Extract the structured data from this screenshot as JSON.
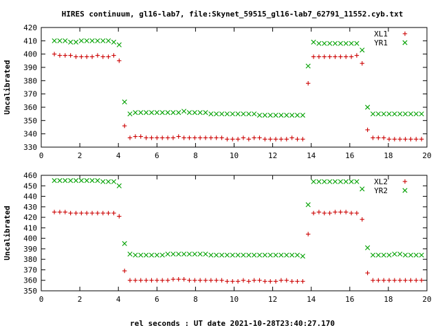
{
  "chart_data": [
    {
      "type": "scatter",
      "title": "HIRES continuum, gl16-lab7, file:Skynet_59515_gl16-lab7_62791_11552.cyb.txt",
      "ylabel": "Uncalibrated",
      "xlabel": "",
      "xlim": [
        0,
        20
      ],
      "ylim": [
        330,
        420
      ],
      "xticks": [
        0,
        2,
        4,
        6,
        8,
        10,
        12,
        14,
        16,
        18,
        20
      ],
      "yticks": [
        330,
        340,
        350,
        360,
        370,
        380,
        390,
        400,
        410,
        420
      ],
      "grid": false,
      "legend_position": "top-right",
      "series": [
        {
          "name": "XL1",
          "marker": "plus",
          "color": "#cc0000",
          "x": [
            0.68,
            0.96,
            1.24,
            1.52,
            1.8,
            2.08,
            2.36,
            2.64,
            2.92,
            3.2,
            3.48,
            3.76,
            4.04,
            4.32,
            4.6,
            4.88,
            5.16,
            5.44,
            5.72,
            6.0,
            6.28,
            6.56,
            6.84,
            7.12,
            7.4,
            7.68,
            7.96,
            8.24,
            8.52,
            8.8,
            9.08,
            9.36,
            9.64,
            9.92,
            10.2,
            10.48,
            10.76,
            11.04,
            11.32,
            11.6,
            11.88,
            12.16,
            12.44,
            12.72,
            13.0,
            13.28,
            13.56,
            13.84,
            14.12,
            14.4,
            14.68,
            14.96,
            15.24,
            15.52,
            15.8,
            16.08,
            16.36,
            16.64,
            16.92,
            17.2,
            17.48,
            17.76,
            18.04,
            18.32,
            18.6,
            18.88,
            19.16,
            19.44,
            19.72
          ],
          "y": [
            400,
            399,
            399,
            399,
            398,
            398,
            398,
            398,
            399,
            398,
            398,
            399,
            395,
            346,
            337,
            338,
            338,
            337,
            337,
            337,
            337,
            337,
            337,
            338,
            337,
            337,
            337,
            337,
            337,
            337,
            337,
            337,
            336,
            336,
            336,
            337,
            336,
            337,
            337,
            336,
            336,
            336,
            336,
            336,
            337,
            336,
            336,
            378,
            398,
            398,
            398,
            398,
            398,
            398,
            398,
            398,
            399,
            393,
            343,
            337,
            337,
            337,
            336,
            336,
            336,
            336,
            336,
            336,
            336
          ]
        },
        {
          "name": "YR1",
          "marker": "cross",
          "color": "#00a000",
          "x": [
            0.68,
            0.96,
            1.24,
            1.52,
            1.8,
            2.08,
            2.36,
            2.64,
            2.92,
            3.2,
            3.48,
            3.76,
            4.04,
            4.32,
            4.6,
            4.88,
            5.16,
            5.44,
            5.72,
            6.0,
            6.28,
            6.56,
            6.84,
            7.12,
            7.4,
            7.68,
            7.96,
            8.24,
            8.52,
            8.8,
            9.08,
            9.36,
            9.64,
            9.92,
            10.2,
            10.48,
            10.76,
            11.04,
            11.32,
            11.6,
            11.88,
            12.16,
            12.44,
            12.72,
            13.0,
            13.28,
            13.56,
            13.84,
            14.12,
            14.4,
            14.68,
            14.96,
            15.24,
            15.52,
            15.8,
            16.08,
            16.36,
            16.64,
            16.92,
            17.2,
            17.48,
            17.76,
            18.04,
            18.32,
            18.6,
            18.88,
            19.16,
            19.44,
            19.72
          ],
          "y": [
            410,
            410,
            410,
            409,
            409,
            410,
            410,
            410,
            410,
            410,
            410,
            409,
            407,
            364,
            355,
            356,
            356,
            356,
            356,
            356,
            356,
            356,
            356,
            356,
            357,
            356,
            356,
            356,
            356,
            355,
            355,
            355,
            355,
            355,
            355,
            355,
            355,
            355,
            354,
            354,
            354,
            354,
            354,
            354,
            354,
            354,
            354,
            391,
            409,
            408,
            408,
            408,
            408,
            408,
            408,
            408,
            408,
            403,
            360,
            355,
            355,
            355,
            355,
            355,
            355,
            355,
            355,
            355,
            355
          ]
        }
      ]
    },
    {
      "type": "scatter",
      "title": "",
      "ylabel": "Uncalibrated",
      "xlabel": "rel seconds : UT date 2021-10-28T23:40:27.170",
      "xlim": [
        0,
        20
      ],
      "ylim": [
        350,
        460
      ],
      "xticks": [
        0,
        2,
        4,
        6,
        8,
        10,
        12,
        14,
        16,
        18,
        20
      ],
      "yticks": [
        350,
        360,
        370,
        380,
        390,
        400,
        410,
        420,
        430,
        440,
        450,
        460
      ],
      "grid": false,
      "legend_position": "top-right",
      "series": [
        {
          "name": "XL2",
          "marker": "plus",
          "color": "#cc0000",
          "x": [
            0.68,
            0.96,
            1.24,
            1.52,
            1.8,
            2.08,
            2.36,
            2.64,
            2.92,
            3.2,
            3.48,
            3.76,
            4.04,
            4.32,
            4.6,
            4.88,
            5.16,
            5.44,
            5.72,
            6.0,
            6.28,
            6.56,
            6.84,
            7.12,
            7.4,
            7.68,
            7.96,
            8.24,
            8.52,
            8.8,
            9.08,
            9.36,
            9.64,
            9.92,
            10.2,
            10.48,
            10.76,
            11.04,
            11.32,
            11.6,
            11.88,
            12.16,
            12.44,
            12.72,
            13.0,
            13.28,
            13.56,
            13.84,
            14.12,
            14.4,
            14.68,
            14.96,
            15.24,
            15.52,
            15.8,
            16.08,
            16.36,
            16.64,
            16.92,
            17.2,
            17.48,
            17.76,
            18.04,
            18.32,
            18.6,
            18.88,
            19.16,
            19.44,
            19.72
          ],
          "y": [
            425,
            425,
            425,
            424,
            424,
            424,
            424,
            424,
            424,
            424,
            424,
            424,
            421,
            369,
            360,
            360,
            360,
            360,
            360,
            360,
            360,
            360,
            361,
            361,
            361,
            360,
            360,
            360,
            360,
            360,
            360,
            360,
            359,
            359,
            359,
            360,
            359,
            360,
            360,
            359,
            359,
            359,
            360,
            360,
            359,
            359,
            359,
            404,
            424,
            425,
            424,
            424,
            425,
            425,
            425,
            424,
            424,
            418,
            367,
            360,
            360,
            360,
            360,
            360,
            360,
            360,
            360,
            360,
            360
          ]
        },
        {
          "name": "YR2",
          "marker": "cross",
          "color": "#00a000",
          "x": [
            0.68,
            0.96,
            1.24,
            1.52,
            1.8,
            2.08,
            2.36,
            2.64,
            2.92,
            3.2,
            3.48,
            3.76,
            4.04,
            4.32,
            4.6,
            4.88,
            5.16,
            5.44,
            5.72,
            6.0,
            6.28,
            6.56,
            6.84,
            7.12,
            7.4,
            7.68,
            7.96,
            8.24,
            8.52,
            8.8,
            9.08,
            9.36,
            9.64,
            9.92,
            10.2,
            10.48,
            10.76,
            11.04,
            11.32,
            11.6,
            11.88,
            12.16,
            12.44,
            12.72,
            13.0,
            13.28,
            13.56,
            13.84,
            14.12,
            14.4,
            14.68,
            14.96,
            15.24,
            15.52,
            15.8,
            16.08,
            16.36,
            16.64,
            16.92,
            17.2,
            17.48,
            17.76,
            18.04,
            18.32,
            18.6,
            18.88,
            19.16,
            19.44,
            19.72
          ],
          "y": [
            455,
            455,
            455,
            455,
            455,
            455,
            455,
            455,
            455,
            454,
            454,
            454,
            450,
            395,
            385,
            384,
            384,
            384,
            384,
            384,
            384,
            385,
            385,
            385,
            385,
            385,
            385,
            385,
            385,
            384,
            384,
            384,
            384,
            384,
            384,
            384,
            384,
            384,
            384,
            384,
            384,
            384,
            384,
            384,
            384,
            384,
            383,
            432,
            454,
            454,
            454,
            454,
            454,
            454,
            454,
            454,
            454,
            447,
            391,
            384,
            384,
            384,
            384,
            385,
            385,
            384,
            384,
            384,
            384
          ]
        }
      ]
    }
  ]
}
